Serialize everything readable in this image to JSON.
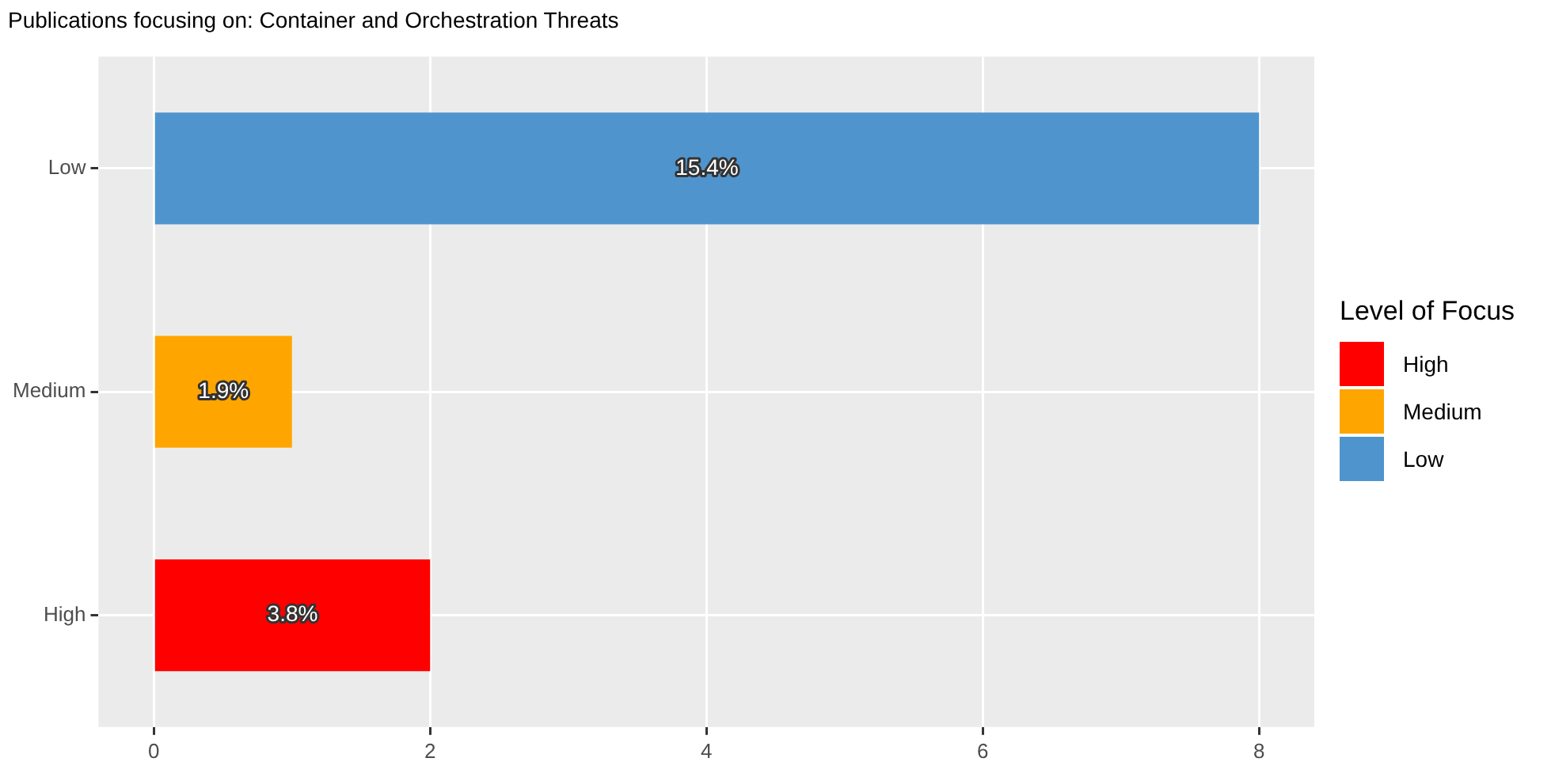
{
  "chart_data": {
    "type": "bar",
    "orientation": "horizontal",
    "title": "Publications focusing on: Container and Orchestration Threats",
    "legend_title": "Level of Focus",
    "categories": [
      "Low",
      "Medium",
      "High"
    ],
    "series": [
      {
        "name": "High",
        "color": "#ff0000",
        "values": [
          null,
          null,
          2
        ]
      },
      {
        "name": "Medium",
        "color": "#ffa500",
        "values": [
          null,
          1,
          null
        ]
      },
      {
        "name": "Low",
        "color": "#4f94cd",
        "values": [
          8,
          null,
          null
        ]
      }
    ],
    "annotations": [
      "15.4%",
      "1.9%",
      "3.8%"
    ],
    "xlim": [
      -0.4,
      8.4
    ],
    "xticks": [
      0,
      2,
      4,
      6,
      8
    ],
    "grid": true,
    "legend": "right"
  }
}
